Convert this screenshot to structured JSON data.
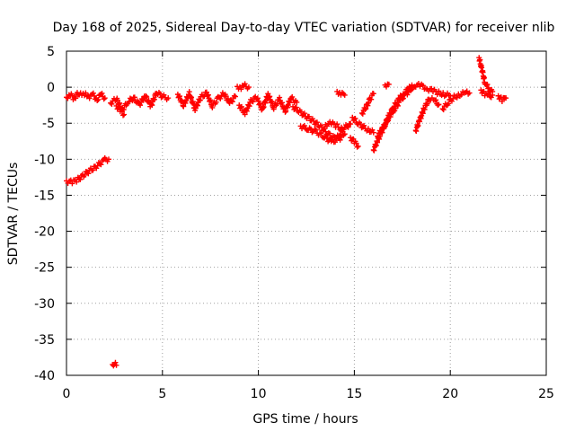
{
  "chart_data": {
    "type": "scatter",
    "title": "Day 168 of 2025, Sidereal Day-to-day VTEC variation (SDTVAR) for receiver nlib",
    "xlabel": "GPS time / hours",
    "ylabel": "SDTVAR / TECUs",
    "xlim": [
      0,
      25
    ],
    "ylim": [
      -40,
      5
    ],
    "xticks": [
      0,
      5,
      10,
      15,
      20,
      25
    ],
    "yticks": [
      5,
      0,
      -5,
      -10,
      -15,
      -20,
      -25,
      -30,
      -35,
      -40
    ],
    "grid": true,
    "marker": "plus",
    "color": "#ff0000",
    "series": [
      {
        "name": "SDTVAR",
        "segments": [
          {
            "x": [
              0.0,
              0.3,
              0.6,
              0.9,
              1.2,
              1.5,
              1.8,
              2.0,
              2.2
            ],
            "y": [
              -13.0,
              -13.2,
              -12.8,
              -12.2,
              -11.6,
              -11.1,
              -10.5,
              -10.1,
              -10.0
            ]
          },
          {
            "x": [
              0.0,
              0.2,
              0.4,
              0.6,
              0.8,
              1.0,
              1.2,
              1.4,
              1.6,
              1.8,
              2.0
            ],
            "y": [
              -1.4,
              -1.0,
              -1.6,
              -0.8,
              -1.2,
              -0.9,
              -1.3,
              -1.1,
              -1.7,
              -1.0,
              -1.5
            ]
          },
          {
            "x": [
              2.3,
              2.6,
              2.9,
              3.2,
              3.5,
              3.8,
              4.1,
              4.4,
              4.7,
              5.0,
              5.3
            ],
            "y": [
              -2.2,
              -1.6,
              -3.2,
              -2.0,
              -1.5,
              -2.4,
              -1.2,
              -2.6,
              -0.7,
              -1.3,
              -1.5
            ]
          },
          {
            "x": [
              2.6,
              2.8,
              3.0
            ],
            "y": [
              -2.6,
              -3.2,
              -3.8
            ]
          },
          {
            "x": [
              5.8,
              6.1,
              6.4,
              6.7,
              7.0,
              7.3,
              7.6,
              7.9,
              8.2,
              8.5,
              8.8
            ],
            "y": [
              -1.0,
              -2.5,
              -0.9,
              -3.0,
              -1.4,
              -0.8,
              -2.6,
              -1.6,
              -0.9,
              -2.2,
              -1.3
            ]
          },
          {
            "x": [
              8.9,
              9.1,
              9.3,
              9.5
            ],
            "y": [
              0.1,
              -0.1,
              0.2,
              0.0
            ]
          },
          {
            "x": [
              9.0,
              9.3,
              9.6,
              9.9,
              10.2,
              10.5,
              10.8,
              11.1,
              11.4,
              11.7,
              12.0
            ],
            "y": [
              -2.5,
              -3.6,
              -2.0,
              -1.4,
              -3.1,
              -1.0,
              -2.8,
              -1.7,
              -3.3,
              -1.5,
              -2.1
            ]
          },
          {
            "x": [
              11.8,
              12.1,
              12.4,
              12.7,
              13.0,
              13.3,
              13.6,
              13.9,
              14.2,
              14.5,
              14.8
            ],
            "y": [
              -2.7,
              -3.3,
              -3.9,
              -4.4,
              -5.0,
              -5.6,
              -6.4,
              -7.0,
              -6.6,
              -5.6,
              -5.1
            ]
          },
          {
            "x": [
              12.2,
              12.6,
              13.0,
              13.4,
              13.8,
              14.2,
              14.5
            ],
            "y": [
              -5.4,
              -5.8,
              -6.2,
              -6.8,
              -7.6,
              -7.2,
              -6.5
            ]
          },
          {
            "x": [
              13.5,
              13.8,
              14.1,
              14.4
            ],
            "y": [
              -5.2,
              -5.0,
              -5.4,
              -5.8
            ]
          },
          {
            "x": [
              14.1,
              14.3,
              14.5
            ],
            "y": [
              -0.6,
              -0.9,
              -1.1
            ]
          },
          {
            "x": [
              14.9,
              15.2,
              15.5,
              15.8,
              16.0
            ],
            "y": [
              -4.2,
              -5.0,
              -5.6,
              -6.0,
              -6.3
            ]
          },
          {
            "x": [
              14.8,
              15.0,
              15.2
            ],
            "y": [
              -7.0,
              -7.6,
              -8.2
            ]
          },
          {
            "x": [
              15.4,
              15.6,
              15.8,
              16.0
            ],
            "y": [
              -3.6,
              -2.8,
              -1.8,
              -0.9
            ]
          },
          {
            "x": [
              16.0,
              16.2,
              16.4,
              16.6,
              16.8,
              17.0,
              17.2,
              17.4,
              17.6,
              17.8,
              18.0,
              18.2,
              18.5,
              18.8,
              19.1,
              19.4,
              19.7,
              20.0
            ],
            "y": [
              -8.7,
              -7.5,
              -6.4,
              -5.2,
              -4.0,
              -3.0,
              -2.1,
              -1.4,
              -0.8,
              -0.3,
              0.1,
              0.3,
              0.2,
              -0.2,
              -0.5,
              -0.8,
              -1.0,
              -1.2
            ]
          },
          {
            "x": [
              16.2,
              16.5,
              16.8,
              17.1,
              17.4,
              17.7,
              18.0
            ],
            "y": [
              -6.8,
              -5.6,
              -4.2,
              -3.0,
              -1.8,
              -0.9,
              -0.3
            ]
          },
          {
            "x": [
              16.6,
              16.8
            ],
            "y": [
              0.3,
              0.4
            ]
          },
          {
            "x": [
              18.2,
              18.4,
              18.6,
              18.9,
              19.2,
              19.4
            ],
            "y": [
              -6.0,
              -4.6,
              -3.2,
              -1.6,
              -1.9,
              -2.4
            ]
          },
          {
            "x": [
              19.6,
              19.9,
              20.2,
              20.5,
              20.8,
              21.0
            ],
            "y": [
              -3.0,
              -2.1,
              -1.4,
              -1.0,
              -0.8,
              -0.8
            ]
          },
          {
            "x": [
              21.5,
              21.6,
              21.7,
              21.8,
              21.9,
              22.0,
              22.1,
              22.2
            ],
            "y": [
              4.1,
              3.0,
              1.8,
              0.7,
              0.3,
              -0.2,
              -0.4,
              -0.6
            ]
          },
          {
            "x": [
              21.6,
              21.8,
              22.0,
              22.2
            ],
            "y": [
              -0.4,
              -1.0,
              -1.3,
              -1.1
            ]
          },
          {
            "x": [
              22.5,
              22.7,
              22.9
            ],
            "y": [
              -1.2,
              -1.8,
              -1.5
            ]
          },
          {
            "x": [
              2.4,
              2.5,
              2.6
            ],
            "y": [
              -38.5,
              -38.3,
              -38.6
            ]
          }
        ]
      }
    ]
  }
}
